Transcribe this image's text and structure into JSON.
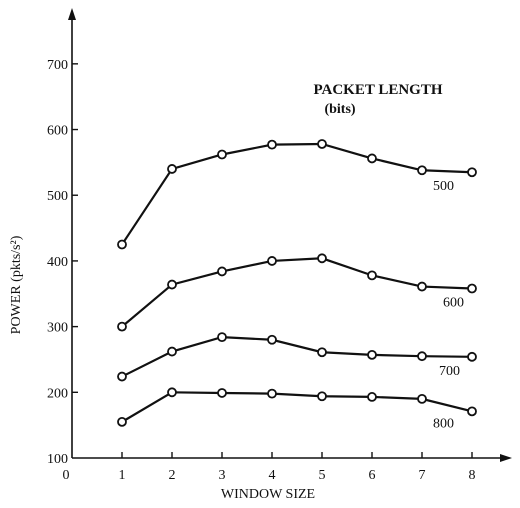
{
  "chart_data": {
    "type": "line",
    "title": "",
    "xlabel": "WINDOW SIZE",
    "ylabel": "POWER (pkts/s²)",
    "x": [
      1,
      2,
      3,
      4,
      5,
      6,
      7,
      8
    ],
    "xticks": [
      "0",
      "1",
      "2",
      "3",
      "4",
      "5",
      "6",
      "7",
      "8"
    ],
    "yticks": [
      "100",
      "200",
      "300",
      "400",
      "500",
      "600",
      "700"
    ],
    "xlim": [
      0,
      8.8
    ],
    "ylim": [
      100,
      785
    ],
    "grid": false,
    "legend_title": "PACKET LENGTH",
    "legend_subtitle": "(bits)",
    "series": [
      {
        "name": "500",
        "values": [
          425,
          540,
          562,
          577,
          578,
          556,
          538,
          535
        ]
      },
      {
        "name": "600",
        "values": [
          300,
          364,
          384,
          400,
          404,
          378,
          361,
          358
        ]
      },
      {
        "name": "700",
        "values": [
          224,
          262,
          284,
          280,
          261,
          257,
          255,
          254
        ]
      },
      {
        "name": "800",
        "values": [
          155,
          200,
          199,
          198,
          194,
          193,
          190,
          171
        ]
      }
    ]
  }
}
